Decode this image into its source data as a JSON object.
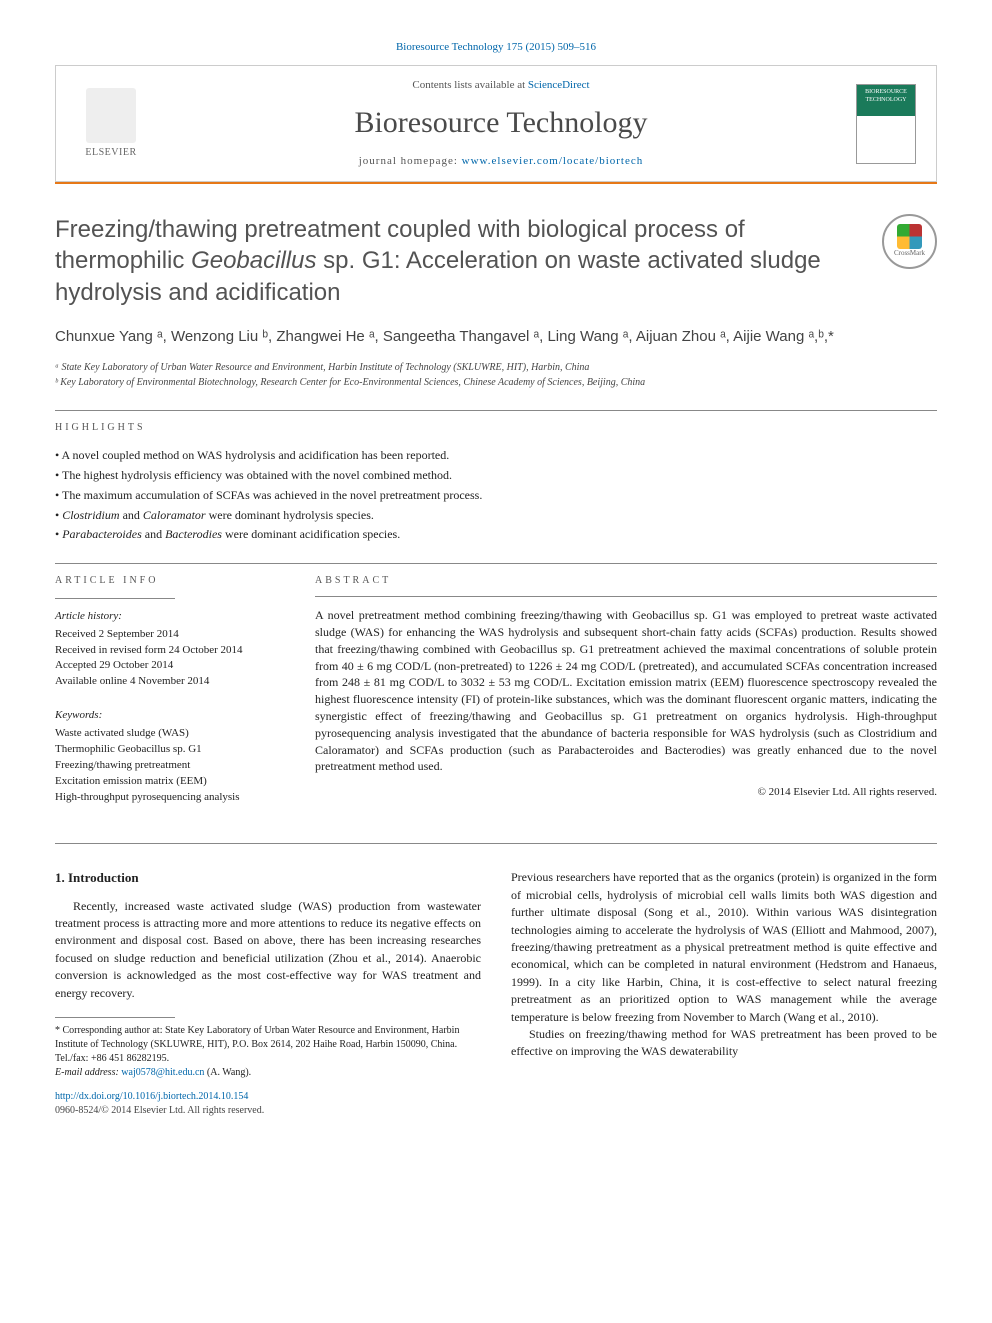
{
  "topline": "Bioresource Technology 175 (2015) 509–516",
  "header": {
    "contents_prefix": "Contents lists available at ",
    "contents_link": "ScienceDirect",
    "journal_name": "Bioresource Technology",
    "homepage_label": "journal homepage: ",
    "homepage_url": "www.elsevier.com/locate/biortech",
    "publisher": "ELSEVIER",
    "thumb_text": "BIORESOURCE TECHNOLOGY"
  },
  "crossmark_label": "CrossMark",
  "title": {
    "part1": "Freezing/thawing pretreatment coupled with biological process of thermophilic ",
    "species": "Geobacillus",
    "part2": " sp. G1: Acceleration on waste activated sludge hydrolysis and acidification"
  },
  "authors_line": "Chunxue Yang ᵃ, Wenzong Liu ᵇ, Zhangwei He ᵃ, Sangeetha Thangavel ᵃ, Ling Wang ᵃ, Aijuan Zhou ᵃ, Aijie Wang ᵃ,ᵇ,*",
  "affiliations": {
    "a": "ᵃ State Key Laboratory of Urban Water Resource and Environment, Harbin Institute of Technology (SKLUWRE, HIT), Harbin, China",
    "b": "ᵇ Key Laboratory of Environmental Biotechnology, Research Center for Eco-Environmental Sciences, Chinese Academy of Sciences, Beijing, China"
  },
  "highlights_label": "HIGHLIGHTS",
  "highlights": [
    "A novel coupled method on WAS hydrolysis and acidification has been reported.",
    "The highest hydrolysis efficiency was obtained with the novel combined method.",
    "The maximum accumulation of SCFAs was achieved in the novel pretreatment process.",
    "<i>Clostridium</i> and <i>Caloramator</i> were dominant hydrolysis species.",
    "<i>Parabacteroides</i> and <i>Bacterodies</i> were dominant acidification species."
  ],
  "article_info_label": "ARTICLE INFO",
  "abstract_label": "ABSTRACT",
  "history": {
    "label": "Article history:",
    "received": "Received 2 September 2014",
    "revised": "Received in revised form 24 October 2014",
    "accepted": "Accepted 29 October 2014",
    "online": "Available online 4 November 2014"
  },
  "keywords": {
    "label": "Keywords:",
    "items": [
      "Waste activated sludge (WAS)",
      "Thermophilic Geobacillus sp. G1",
      "Freezing/thawing pretreatment",
      "Excitation emission matrix (EEM)",
      "High-throughput pyrosequencing analysis"
    ]
  },
  "abstract_text": "A novel pretreatment method combining freezing/thawing with Geobacillus sp. G1 was employed to pretreat waste activated sludge (WAS) for enhancing the WAS hydrolysis and subsequent short-chain fatty acids (SCFAs) production. Results showed that freezing/thawing combined with Geobacillus sp. G1 pretreatment achieved the maximal concentrations of soluble protein from 40 ± 6 mg COD/L (non-pretreated) to 1226 ± 24 mg COD/L (pretreated), and accumulated SCFAs concentration increased from 248 ± 81 mg COD/L to 3032 ± 53 mg COD/L. Excitation emission matrix (EEM) fluorescence spectroscopy revealed the highest fluorescence intensity (FI) of protein-like substances, which was the dominant fluorescent organic matters, indicating the synergistic effect of freezing/thawing and Geobacillus sp. G1 pretreatment on organics hydrolysis. High-throughput pyrosequencing analysis investigated that the abundance of bacteria responsible for WAS hydrolysis (such as Clostridium and Caloramator) and SCFAs production (such as Parabacteroides and Bacterodies) was greatly enhanced due to the novel pretreatment method used.",
  "abstract_copyright": "© 2014 Elsevier Ltd. All rights reserved.",
  "intro": {
    "heading": "1. Introduction",
    "col1_p1": "Recently, increased waste activated sludge (WAS) production from wastewater treatment process is attracting more and more attentions to reduce its negative effects on environment and disposal cost. Based on above, there has been increasing researches focused on sludge reduction and beneficial utilization (Zhou et al., 2014). Anaerobic conversion is acknowledged as the most cost-effective way for WAS treatment and energy recovery.",
    "col2_p1": "Previous researchers have reported that as the organics (protein) is organized in the form of microbial cells, hydrolysis of microbial cell walls limits both WAS digestion and further ultimate disposal (Song et al., 2010). Within various WAS disintegration technologies aiming to accelerate the hydrolysis of WAS (Elliott and Mahmood, 2007), freezing/thawing pretreatment as a physical pretreatment method is quite effective and economical, which can be completed in natural environment (Hedstrom and Hanaeus, 1999). In a city like Harbin, China, it is cost-effective to select natural freezing pretreatment as an prioritized option to WAS management while the average temperature is below freezing from November to March (Wang et al., 2010).",
    "col2_p2": "Studies on freezing/thawing method for WAS pretreatment has been proved to be effective on improving the WAS dewaterability"
  },
  "corresponding": {
    "text": "* Corresponding author at: State Key Laboratory of Urban Water Resource and Environment, Harbin Institute of Technology (SKLUWRE, HIT), P.O. Box 2614, 202 Haihe Road, Harbin 150090, China. Tel./fax: +86 451 86282195.",
    "email_label": "E-mail address: ",
    "email": "waj0578@hit.edu.cn",
    "email_suffix": " (A. Wang)."
  },
  "footer": {
    "doi": "http://dx.doi.org/10.1016/j.biortech.2014.10.154",
    "issn_line": "0960-8524/© 2014 Elsevier Ltd. All rights reserved."
  },
  "colors": {
    "link": "#0066aa",
    "orange": "#e67817",
    "title_gray": "#535353"
  }
}
